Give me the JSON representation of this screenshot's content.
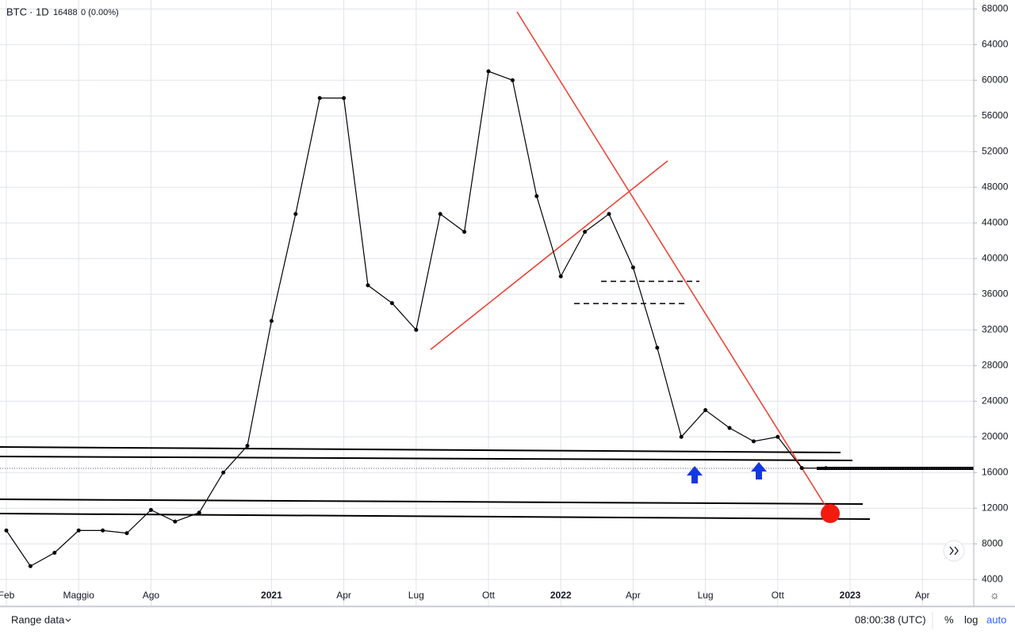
{
  "chart_data": {
    "type": "line",
    "symbol": "BTC",
    "interval": "1D",
    "last": 16488,
    "change": "0 (0.00%)",
    "x": [
      "2020-02",
      "2020-03",
      "2020-04",
      "2020-05",
      "2020-06",
      "2020-07",
      "2020-08",
      "2020-09",
      "2020-10",
      "2020-11",
      "2020-12",
      "2021-01",
      "2021-02",
      "2021-03",
      "2021-04",
      "2021-05",
      "2021-06",
      "2021-07",
      "2021-08",
      "2021-09",
      "2021-10",
      "2021-11",
      "2021-12",
      "2022-01",
      "2022-02",
      "2022-03",
      "2022-04",
      "2022-05",
      "2022-06",
      "2022-07",
      "2022-08",
      "2022-09",
      "2022-10",
      "2022-11",
      "2022-12"
    ],
    "series": [
      {
        "name": "BTC",
        "color": "#000000",
        "values": [
          9500,
          5500,
          7000,
          9500,
          9500,
          9200,
          11800,
          10500,
          11500,
          16000,
          19000,
          33000,
          45000,
          58000,
          58000,
          37000,
          35000,
          32000,
          45000,
          43000,
          61000,
          60000,
          47000,
          38000,
          43000,
          45000,
          39000,
          30000,
          20000,
          23000,
          21000,
          19500,
          20000,
          16500,
          16488
        ]
      }
    ],
    "xlim": [
      "2020-02",
      "2023-06"
    ],
    "xticks": [
      {
        "value": "2020-02",
        "label": "Feb"
      },
      {
        "value": "2020-05",
        "label": "Maggio"
      },
      {
        "value": "2020-08",
        "label": "Ago"
      },
      {
        "value": "2021-01",
        "label": "2021"
      },
      {
        "value": "2021-04",
        "label": "Apr"
      },
      {
        "value": "2021-07",
        "label": "Lug"
      },
      {
        "value": "2021-10",
        "label": "Ott"
      },
      {
        "value": "2022-01",
        "label": "2022"
      },
      {
        "value": "2022-04",
        "label": "Apr"
      },
      {
        "value": "2022-07",
        "label": "Lug"
      },
      {
        "value": "2022-10",
        "label": "Ott"
      },
      {
        "value": "2023-01",
        "label": "2023"
      },
      {
        "value": "2023-04",
        "label": "Apr"
      }
    ],
    "ylim": [
      1000,
      69000
    ],
    "yticks": [
      4000,
      8000,
      12000,
      16000,
      20000,
      24000,
      28000,
      32000,
      36000,
      40000,
      44000,
      48000,
      52000,
      56000,
      60000,
      64000,
      68000
    ],
    "grid": true,
    "log_scale": false
  },
  "footer": {
    "range": "Range data",
    "time": "08:00:38 (UTC)",
    "percent": "%",
    "log": "log",
    "auto": "auto"
  }
}
